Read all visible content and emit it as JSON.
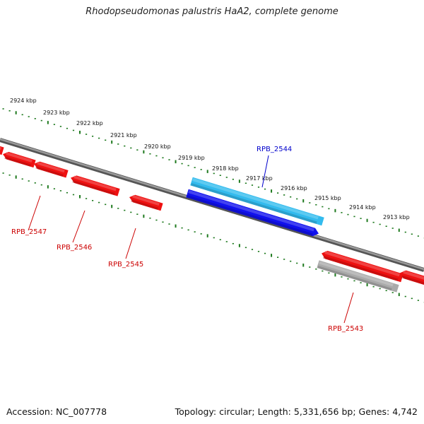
{
  "title": "Rhodopseudomonas palustris HaA2, complete genome",
  "footer": {
    "accession": "Accession: NC_007778",
    "summary": "Topology: circular; Length: 5,331,656 bp; Genes: 4,742"
  },
  "colors": {
    "backbone": "#7a7a7a",
    "tick": "#1f7a1f",
    "gene_red": "#ee1111",
    "gene_light_blue": "#33bbee",
    "gene_blue": "#1111ee",
    "gene_grey": "#aaaaaa",
    "label_red": "#cc0000",
    "label_blue": "#0000cc"
  },
  "scale": {
    "labels": [
      "2924 kbp",
      "2923 kbp",
      "2922 kbp",
      "2921 kbp",
      "2920 kbp",
      "2919 kbp",
      "2918 kbp",
      "2917 kbp",
      "2916 kbp",
      "2915 kbp",
      "2914 kbp",
      "2913 kbp"
    ]
  },
  "genes": [
    {
      "label": "",
      "color": "#ee1111"
    },
    {
      "label": "RPB_2547",
      "color": "#ee1111"
    },
    {
      "label": "RPB_2546",
      "color": "#ee1111"
    },
    {
      "label": "",
      "color": "#ee1111"
    },
    {
      "label": "RPB_2545",
      "color": "#ee1111"
    },
    {
      "label": "",
      "color": "#33bbee"
    },
    {
      "label": "RPB_2544",
      "color": "#1111ee"
    },
    {
      "label": "",
      "color": "#ee1111"
    },
    {
      "label": "",
      "color": "#ee1111"
    },
    {
      "label": "RPB_2543",
      "color": "#aaaaaa"
    }
  ]
}
